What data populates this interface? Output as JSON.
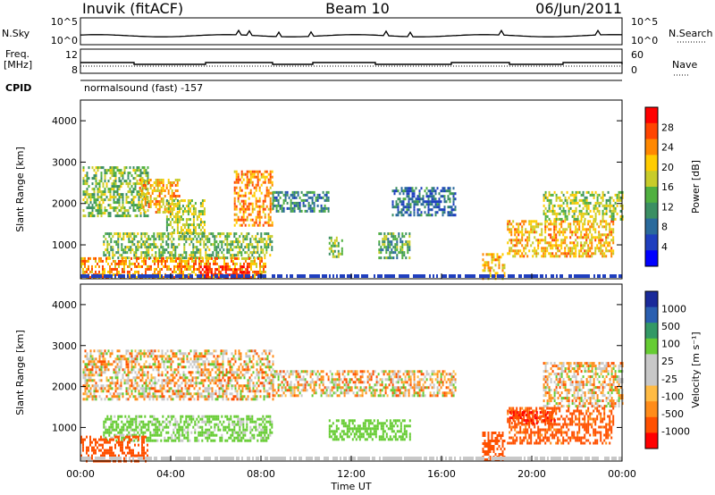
{
  "header": {
    "station": "Inuvik (fitACF)",
    "beam": "Beam 10",
    "date": "06/Jun/2011"
  },
  "strip_panels": {
    "nsky_label": "N.Sky",
    "nsearch_label": "N.Search",
    "nsky_ticks": [
      "10^5",
      "10^0"
    ],
    "nsearch_ticks": [
      "10^5",
      "10^0"
    ],
    "freq_label_line1": "Freq.",
    "freq_label_line2": "[MHz]",
    "freq_ticks": [
      "12",
      "8"
    ],
    "nave_label": "Nave",
    "nave_ticks": [
      "60",
      "0"
    ],
    "cpid_label": "CPID",
    "cpid_text": "normalsound (fast) -157"
  },
  "colors": {
    "power_scale": [
      "#0000ff",
      "#1f3fbf",
      "#2a6a9c",
      "#3b8f63",
      "#50b040",
      "#c8cc2a",
      "#ffcc00",
      "#ff8800",
      "#ff4400",
      "#ff0000"
    ],
    "velocity_scale": [
      "#ff0000",
      "#ff5000",
      "#ff8c1a",
      "#ffbb44",
      "#c8c8c8",
      "#c8c8c8",
      "#66cc33",
      "#339966",
      "#2a5fb0",
      "#1a2a9a"
    ]
  },
  "chart_data": [
    {
      "type": "heatmap",
      "name": "power",
      "ylabel": "Slant Range [km]",
      "xlabel": "",
      "x_ticks": [
        "00:00",
        "04:00",
        "08:00",
        "12:00",
        "16:00",
        "20:00",
        "00:00"
      ],
      "x_range_hours": [
        0,
        24
      ],
      "ylim": [
        180,
        4500
      ],
      "y_ticks": [
        1000,
        2000,
        3000,
        4000
      ],
      "colorbar_label": "Power [dB]",
      "colorbar_ticks": [
        "28",
        "24",
        "20",
        "16",
        "12",
        "8",
        "4"
      ],
      "colorbar_range": [
        0,
        30
      ],
      "echo_regions": [
        {
          "t_start": 0.1,
          "t_end": 3.0,
          "r_low": 1700,
          "r_high": 2900,
          "value": 14
        },
        {
          "t_start": 2.6,
          "t_end": 4.4,
          "r_low": 1800,
          "r_high": 2600,
          "value": 20
        },
        {
          "t_start": 3.8,
          "t_end": 5.5,
          "r_low": 1300,
          "r_high": 2100,
          "value": 16
        },
        {
          "t_start": 6.8,
          "t_end": 8.5,
          "r_low": 1500,
          "r_high": 2800,
          "value": 22
        },
        {
          "t_start": 8.5,
          "t_end": 11.0,
          "r_low": 1800,
          "r_high": 2300,
          "value": 10
        },
        {
          "t_start": 1.0,
          "t_end": 8.5,
          "r_low": 700,
          "r_high": 1300,
          "value": 14
        },
        {
          "t_start": 0.0,
          "t_end": 8.2,
          "r_low": 200,
          "r_high": 700,
          "value": 22
        },
        {
          "t_start": 5.3,
          "t_end": 7.5,
          "r_low": 200,
          "r_high": 500,
          "value": 29
        },
        {
          "t_start": 11.0,
          "t_end": 11.6,
          "r_low": 700,
          "r_high": 1200,
          "value": 14
        },
        {
          "t_start": 13.8,
          "t_end": 16.6,
          "r_low": 1700,
          "r_high": 2400,
          "value": 8
        },
        {
          "t_start": 13.2,
          "t_end": 14.6,
          "r_low": 700,
          "r_high": 1300,
          "value": 12
        },
        {
          "t_start": 17.8,
          "t_end": 18.8,
          "r_low": 200,
          "r_high": 800,
          "value": 20
        },
        {
          "t_start": 18.9,
          "t_end": 23.6,
          "r_low": 700,
          "r_high": 1600,
          "value": 20
        },
        {
          "t_start": 20.5,
          "t_end": 24.0,
          "r_low": 1600,
          "r_high": 2300,
          "value": 16
        }
      ]
    },
    {
      "type": "heatmap",
      "name": "velocity",
      "ylabel": "Slant Range [km]",
      "xlabel": "Time UT",
      "x_ticks": [
        "00:00",
        "04:00",
        "08:00",
        "12:00",
        "16:00",
        "20:00",
        "00:00"
      ],
      "x_range_hours": [
        0,
        24
      ],
      "ylim": [
        180,
        4500
      ],
      "y_ticks": [
        1000,
        2000,
        3000,
        4000
      ],
      "colorbar_label": "Velocity [m s⁻¹]",
      "colorbar_ticks": [
        "1000",
        "500",
        "100",
        "25",
        "-25",
        "-100",
        "-500",
        "-1000"
      ],
      "echo_regions": [
        {
          "t_start": 0.1,
          "t_end": 8.5,
          "r_low": 1700,
          "r_high": 2900,
          "value": 0
        },
        {
          "t_start": 8.5,
          "t_end": 16.6,
          "r_low": 1800,
          "r_high": 2400,
          "value": 0
        },
        {
          "t_start": 20.5,
          "t_end": 24.0,
          "r_low": 1500,
          "r_high": 2600,
          "value": 0
        },
        {
          "t_start": 1.0,
          "t_end": 8.5,
          "r_low": 700,
          "r_high": 1300,
          "value": 200
        },
        {
          "t_start": 11.0,
          "t_end": 14.6,
          "r_low": 700,
          "r_high": 1200,
          "value": 300
        },
        {
          "t_start": 0.0,
          "t_end": 3.0,
          "r_low": 200,
          "r_high": 800,
          "value": -300
        },
        {
          "t_start": 17.8,
          "t_end": 18.8,
          "r_low": 200,
          "r_high": 900,
          "value": -300
        },
        {
          "t_start": 18.9,
          "t_end": 23.6,
          "r_low": 600,
          "r_high": 1500,
          "value": -200
        },
        {
          "t_start": 19.0,
          "t_end": 21.0,
          "r_low": 1100,
          "r_high": 1400,
          "value": -500
        }
      ]
    }
  ]
}
